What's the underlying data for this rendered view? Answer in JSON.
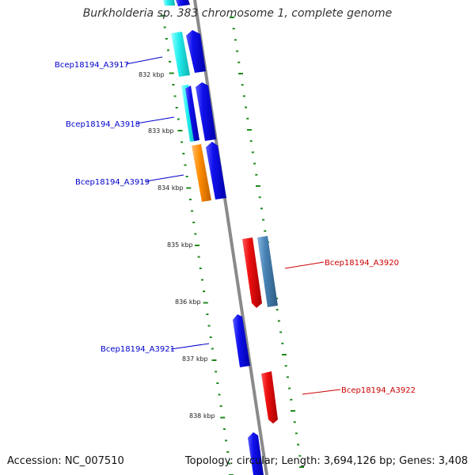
{
  "title": "Burkholderia sp. 383 chromosome 1, complete genome",
  "footer": {
    "accession": "Accession: NC_007510",
    "summary": "Topology: circular; Length: 3,694,126 bp; Genes: 3,408"
  },
  "colors": {
    "backbone": "#8a8a8a",
    "ticks": "#1e8a1e",
    "forward_gene": "#1010ee",
    "reverse_gene": "#ee1010",
    "cds_cyan": "#22eeee",
    "cds_orange": "#ff8c00",
    "cds_steelblue": "#4682b4",
    "label_forward": "#0000cc",
    "label_reverse": "#cc0000"
  },
  "scale_labels": [
    "832 kbp",
    "833 kbp",
    "834 kbp",
    "835 kbp",
    "836 kbp",
    "837 kbp",
    "838 kbp"
  ],
  "genes": [
    {
      "locus_tag": "Bcep18194_A3917",
      "strand": "forward"
    },
    {
      "locus_tag": "Bcep18194_A3918",
      "strand": "forward"
    },
    {
      "locus_tag": "Bcep18194_A3919",
      "strand": "forward"
    },
    {
      "locus_tag": "Bcep18194_A3920",
      "strand": "reverse"
    },
    {
      "locus_tag": "Bcep18194_A3921",
      "strand": "forward"
    },
    {
      "locus_tag": "Bcep18194_A3922",
      "strand": "reverse"
    }
  ]
}
